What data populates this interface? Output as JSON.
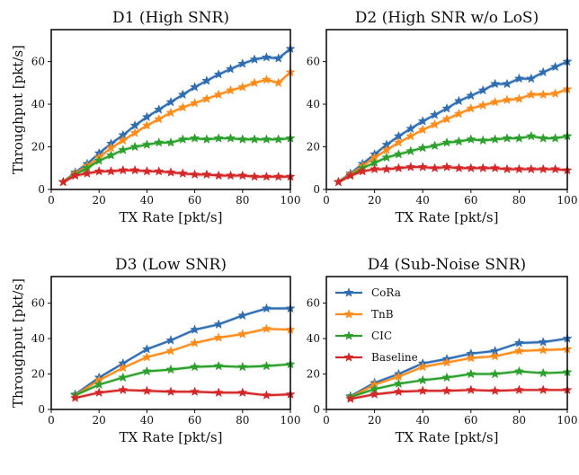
{
  "figure": {
    "colors": {
      "CoRa": "#2f6db3",
      "TnB": "#ff8c1a",
      "CIC": "#2ca02c",
      "Baseline": "#d62728"
    },
    "legend_placement": "upper-left of panel D4"
  },
  "chart_data": [
    {
      "type": "line",
      "title": "D1 (High SNR)",
      "xlabel": "TX Rate [pkt/s]",
      "ylabel": "Throughput [pkt/s]",
      "xlim": [
        0,
        100
      ],
      "ylim": [
        0,
        75
      ],
      "xticks": [
        0,
        20,
        40,
        60,
        80,
        100
      ],
      "yticks": [
        0,
        20,
        40,
        60
      ],
      "x": [
        5,
        10,
        15,
        20,
        25,
        30,
        35,
        40,
        45,
        50,
        55,
        60,
        65,
        70,
        75,
        80,
        85,
        90,
        95,
        100
      ],
      "series": [
        {
          "name": "CoRa",
          "values": [
            3.5,
            8,
            12,
            17,
            21.5,
            25.5,
            30,
            34,
            37.5,
            41,
            44.5,
            48,
            51,
            54,
            56.5,
            59,
            61,
            62,
            61.5,
            66
          ]
        },
        {
          "name": "TnB",
          "values": [
            3.5,
            7.5,
            11,
            15,
            19.5,
            23,
            26.5,
            30,
            33,
            36,
            38.5,
            40.5,
            42.5,
            44.5,
            46.5,
            48,
            50,
            51.5,
            50,
            55
          ]
        },
        {
          "name": "CIC",
          "values": [
            3.5,
            7,
            10,
            13.5,
            16,
            18.5,
            20,
            21,
            22,
            22,
            23.5,
            24,
            23.5,
            24,
            24,
            23.5,
            23.5,
            23.5,
            23.5,
            24
          ]
        },
        {
          "name": "Baseline",
          "values": [
            3.5,
            6.5,
            7.5,
            8.5,
            8.5,
            9,
            9,
            8.5,
            8.5,
            8,
            7.5,
            7,
            7,
            6.5,
            6.5,
            6.5,
            6,
            6,
            6,
            6
          ]
        }
      ]
    },
    {
      "type": "line",
      "title": "D2 (High SNR w/o LoS)",
      "xlabel": "TX Rate [pkt/s]",
      "ylabel": "",
      "xlim": [
        0,
        100
      ],
      "ylim": [
        0,
        75
      ],
      "xticks": [
        0,
        20,
        40,
        60,
        80,
        100
      ],
      "yticks": [
        0,
        20,
        40,
        60
      ],
      "x": [
        5,
        10,
        15,
        20,
        25,
        30,
        35,
        40,
        45,
        50,
        55,
        60,
        65,
        70,
        75,
        80,
        85,
        90,
        95,
        100
      ],
      "series": [
        {
          "name": "CoRa",
          "values": [
            3.5,
            7.5,
            12,
            16.5,
            21,
            25,
            28.5,
            32,
            35,
            38,
            41.5,
            44,
            46.5,
            49.5,
            49.5,
            52,
            52,
            55,
            57.5,
            60
          ]
        },
        {
          "name": "TnB",
          "values": [
            3.5,
            7,
            11,
            15,
            18.5,
            22,
            25,
            28,
            30.5,
            33,
            35.5,
            38,
            39.5,
            41,
            42,
            42.5,
            44.5,
            44.5,
            45,
            47
          ]
        },
        {
          "name": "CIC",
          "values": [
            3.5,
            6.5,
            10,
            12.5,
            15,
            16.5,
            18,
            19.5,
            20.5,
            22,
            22.5,
            23.5,
            23,
            23.5,
            24,
            24,
            25,
            24,
            24,
            25
          ]
        },
        {
          "name": "Baseline",
          "values": [
            3.5,
            6.5,
            8.5,
            9.5,
            9.5,
            10,
            10.5,
            10.5,
            10,
            10.5,
            10,
            10,
            10,
            10,
            9.5,
            9.5,
            9.5,
            9.5,
            9.5,
            9
          ]
        }
      ]
    },
    {
      "type": "line",
      "title": "D3 (Low SNR)",
      "xlabel": "TX Rate [pkt/s]",
      "ylabel": "Throughput [pkt/s]",
      "xlim": [
        0,
        100
      ],
      "ylim": [
        0,
        75
      ],
      "xticks": [
        0,
        20,
        40,
        60,
        80,
        100
      ],
      "yticks": [
        0,
        20,
        40,
        60
      ],
      "x": [
        10,
        20,
        30,
        40,
        50,
        60,
        70,
        80,
        90,
        100
      ],
      "series": [
        {
          "name": "CoRa",
          "values": [
            8.5,
            18,
            26,
            34,
            39,
            45,
            48,
            53,
            57,
            57
          ]
        },
        {
          "name": "TnB",
          "values": [
            8,
            16.5,
            23.5,
            29.5,
            33,
            37.5,
            40.5,
            42.5,
            45.5,
            45
          ]
        },
        {
          "name": "CIC",
          "values": [
            8,
            14,
            18,
            21.5,
            22.5,
            24,
            24.5,
            24,
            24.5,
            25.5
          ]
        },
        {
          "name": "Baseline",
          "values": [
            6.5,
            9.5,
            11,
            10.5,
            10,
            10,
            9.5,
            9.5,
            8,
            8.5
          ]
        }
      ]
    },
    {
      "type": "line",
      "title": "D4 (Sub-Noise SNR)",
      "xlabel": "TX Rate [pkt/s]",
      "ylabel": "",
      "xlim": [
        0,
        100
      ],
      "ylim": [
        0,
        75
      ],
      "xticks": [
        0,
        20,
        40,
        60,
        80,
        100
      ],
      "yticks": [
        0,
        20,
        40,
        60
      ],
      "x": [
        10,
        20,
        30,
        40,
        50,
        60,
        70,
        80,
        90,
        100
      ],
      "series": [
        {
          "name": "CoRa",
          "values": [
            7.5,
            15,
            20,
            26,
            28.5,
            31.5,
            33,
            37.5,
            38,
            40
          ]
        },
        {
          "name": "TnB",
          "values": [
            7,
            14,
            18.5,
            24,
            26.5,
            29,
            30,
            33,
            33.5,
            34
          ]
        },
        {
          "name": "CIC",
          "values": [
            7,
            11.5,
            14.5,
            16.5,
            18,
            20,
            20,
            21.5,
            20.5,
            21
          ]
        },
        {
          "name": "Baseline",
          "values": [
            6,
            8.5,
            10,
            10.5,
            10.5,
            11,
            10.5,
            11,
            11,
            11
          ]
        }
      ],
      "legend": [
        "CoRa",
        "TnB",
        "CIC",
        "Baseline"
      ]
    }
  ]
}
